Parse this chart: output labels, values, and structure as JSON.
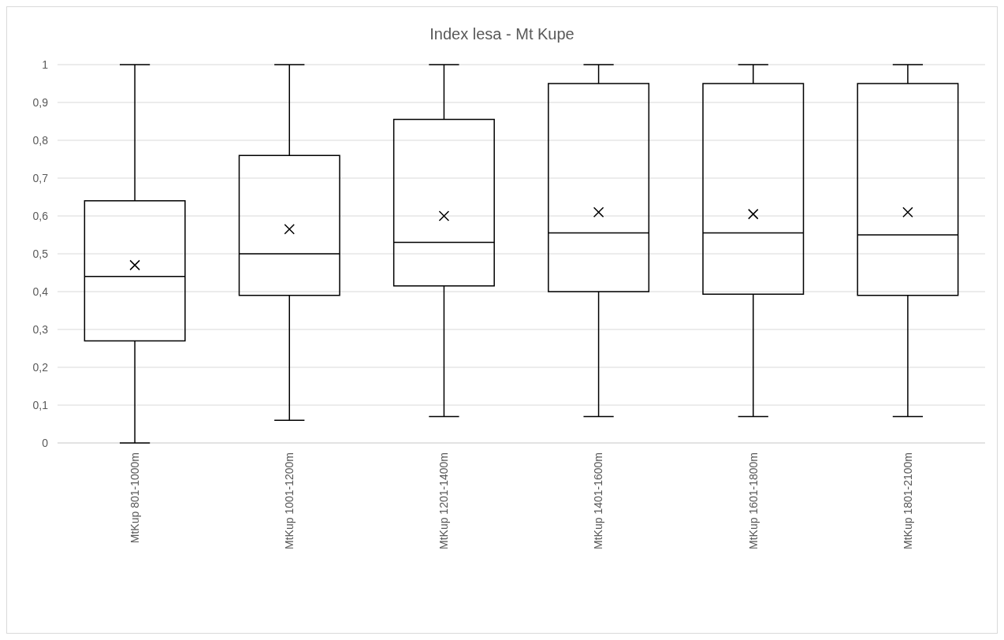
{
  "chart_data": {
    "type": "box",
    "title": "Index lesa - Mt Kupe",
    "categories": [
      "MtKup 801-1000m",
      "MtKup 1001-1200m",
      "MtKup 1201-1400m",
      "MtKup 1401-1600m",
      "MtKup 1601-1800m",
      "MtKup 1801-2100m"
    ],
    "boxes": [
      {
        "low": 0,
        "q1": 0.27,
        "median": 0.44,
        "q3": 0.64,
        "high": 1,
        "mean": 0.47
      },
      {
        "low": 0.06,
        "q1": 0.39,
        "median": 0.5,
        "q3": 0.76,
        "high": 1,
        "mean": 0.565
      },
      {
        "low": 0.07,
        "q1": 0.415,
        "median": 0.53,
        "q3": 0.855,
        "high": 1,
        "mean": 0.6
      },
      {
        "low": 0.07,
        "q1": 0.4,
        "median": 0.555,
        "q3": 0.95,
        "high": 1,
        "mean": 0.61
      },
      {
        "low": 0.07,
        "q1": 0.393,
        "median": 0.555,
        "q3": 0.95,
        "high": 1,
        "mean": 0.605
      },
      {
        "low": 0.07,
        "q1": 0.39,
        "median": 0.55,
        "q3": 0.95,
        "high": 1,
        "mean": 0.61
      }
    ],
    "color": "#000000",
    "ylim": [
      0,
      1
    ],
    "yticks": [
      0,
      {
        "value": 0.1,
        "label": "0,1"
      },
      {
        "value": 0.2,
        "label": "0,2"
      },
      {
        "value": 0.3,
        "label": "0,3"
      },
      {
        "value": 0.4,
        "label": "0,4"
      },
      {
        "value": 0.5,
        "label": "0,5"
      },
      {
        "value": 0.6,
        "label": "0,6"
      },
      {
        "value": 0.7,
        "label": "0,7"
      },
      {
        "value": 0.8,
        "label": "0,8"
      },
      {
        "value": 0.9,
        "label": "0,9"
      },
      1
    ],
    "grid": "y",
    "marker": "cross"
  }
}
